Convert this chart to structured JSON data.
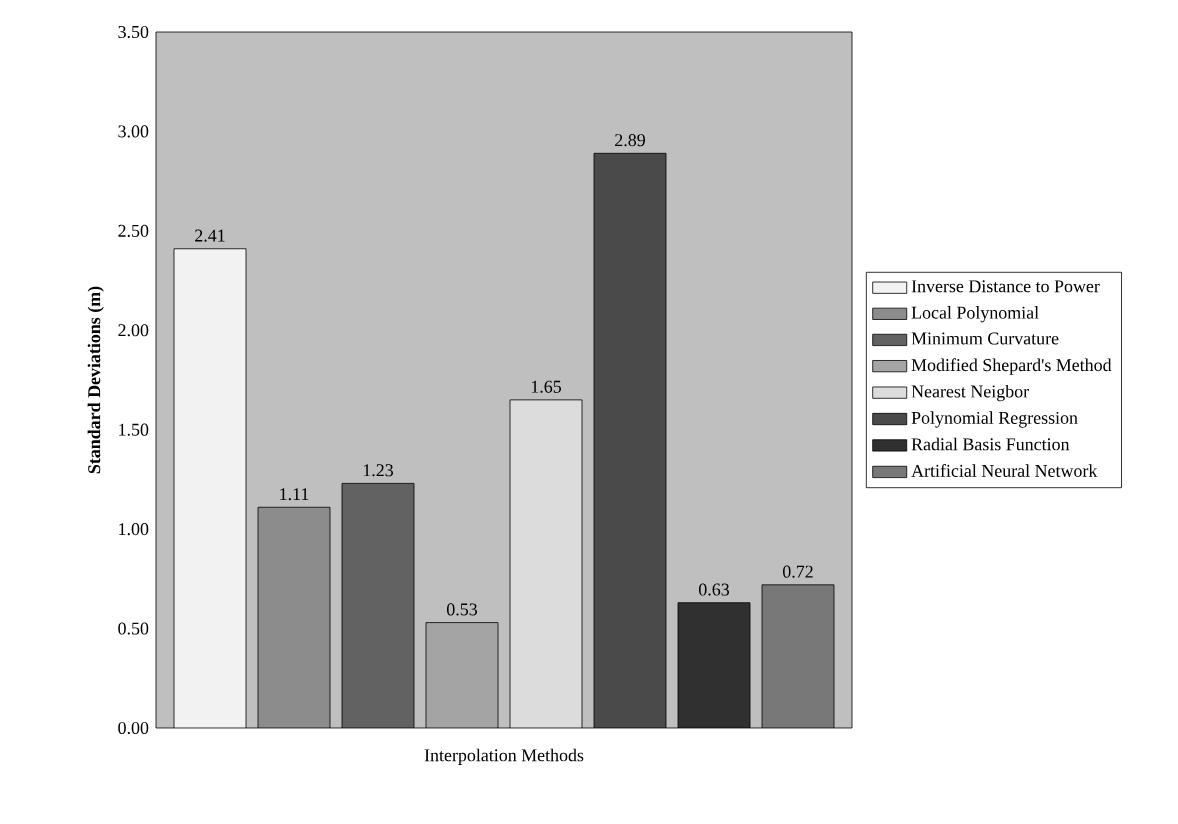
{
  "chart_data": {
    "type": "bar",
    "xlabel": "Interpolation Methods",
    "ylabel": "Standard Deviations (m)",
    "categories": [
      null
    ],
    "series": [
      {
        "name": "Inverse Distance to Power",
        "color": "#f2f2f2",
        "values": [
          2.41
        ]
      },
      {
        "name": "Local Polynomial",
        "color": "#8c8c8c",
        "values": [
          1.11
        ]
      },
      {
        "name": "Minimum Curvature",
        "color": "#626262",
        "values": [
          1.23
        ]
      },
      {
        "name": "Modified Shepard's Method",
        "color": "#a4a4a4",
        "values": [
          0.53
        ]
      },
      {
        "name": "Nearest Neigbor",
        "color": "#dcdcdc",
        "values": [
          1.65
        ]
      },
      {
        "name": "Polynomial Regression",
        "color": "#4a4a4a",
        "values": [
          2.89
        ]
      },
      {
        "name": "Radial Basis Function",
        "color": "#303030",
        "values": [
          0.63
        ]
      },
      {
        "name": "Artificial Neural Network",
        "color": "#787878",
        "values": [
          0.72
        ]
      }
    ],
    "ylim": [
      0,
      3.5
    ],
    "yticks": [
      {
        "value": 0,
        "label": "0.00"
      },
      {
        "value": 0.5,
        "label": "0.50"
      },
      {
        "value": 1,
        "label": "1.00"
      },
      {
        "value": 1.5,
        "label": "1.50"
      },
      {
        "value": 2,
        "label": "2.00"
      },
      {
        "value": 2.5,
        "label": "2.50"
      },
      {
        "value": 3,
        "label": "3.00"
      },
      {
        "value": 3.5,
        "label": "3.50"
      }
    ],
    "data_labels": true,
    "legend": "right",
    "grid": false
  }
}
